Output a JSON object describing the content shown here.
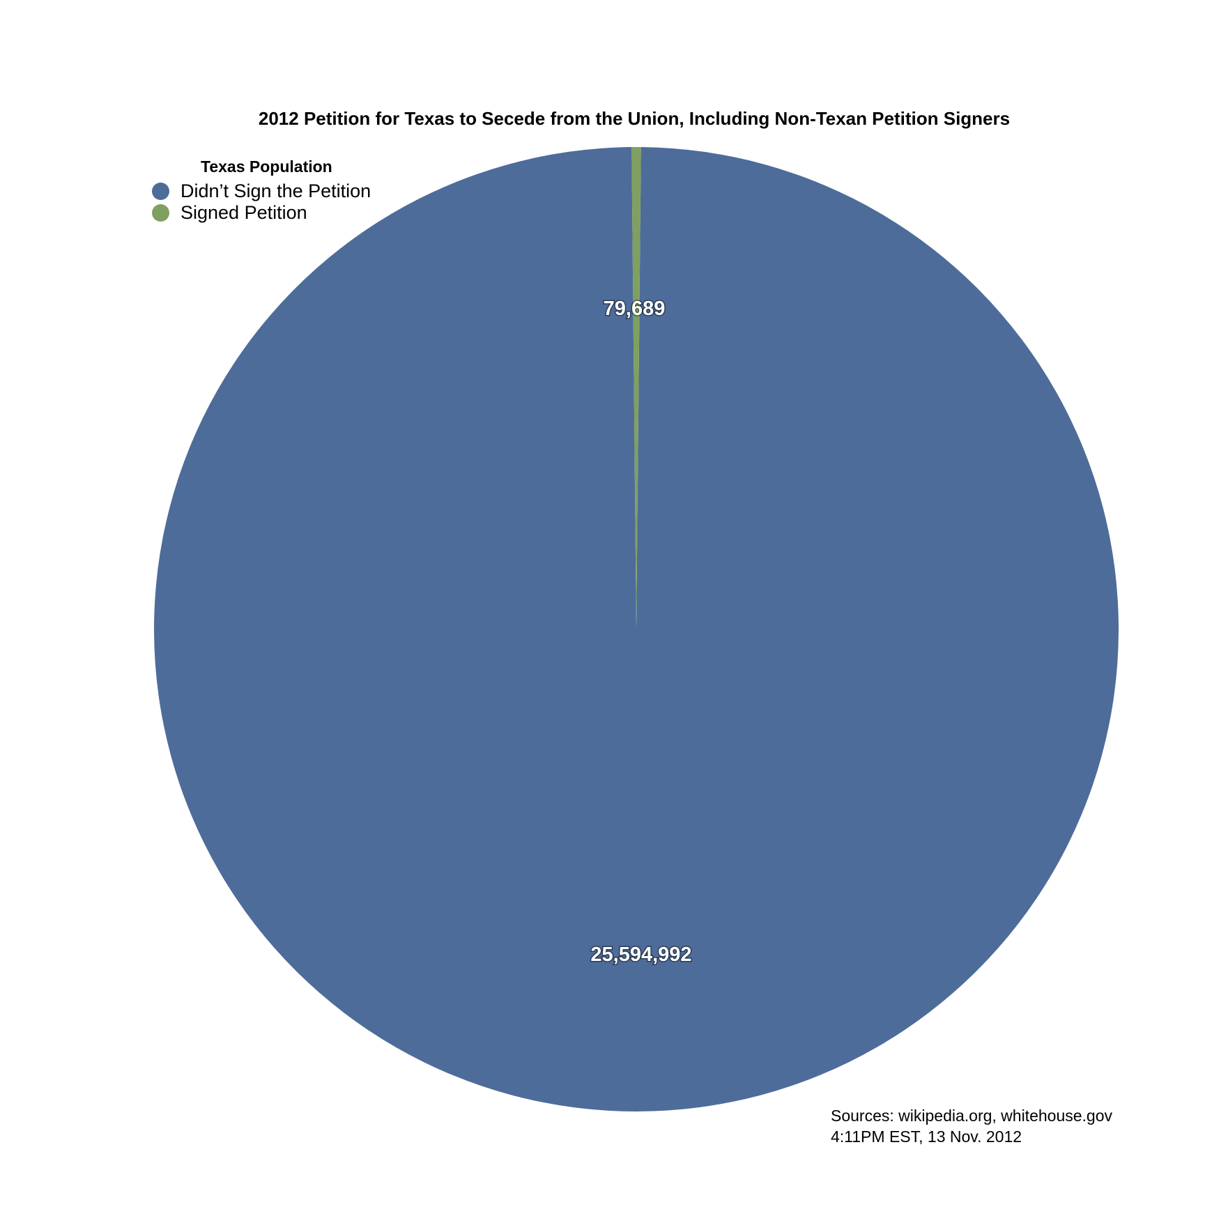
{
  "chart_data": {
    "type": "pie",
    "title": "2012 Petition for Texas to Secede from the Union, Including Non-Texan Petition Signers",
    "legend_title": "Texas Population",
    "legend_position": "top-left",
    "slices": [
      {
        "name": "Didn’t Sign the Petition",
        "value": 25594992,
        "label": "25,594,992",
        "color": "#4e6c9a"
      },
      {
        "name": "Signed Petition",
        "value": 79689,
        "label": "79,689",
        "color": "#7fa060"
      }
    ]
  },
  "sources": {
    "line1": "Sources: wikipedia.org, whitehouse.gov",
    "line2": "4:11PM EST, 13 Nov. 2012"
  }
}
